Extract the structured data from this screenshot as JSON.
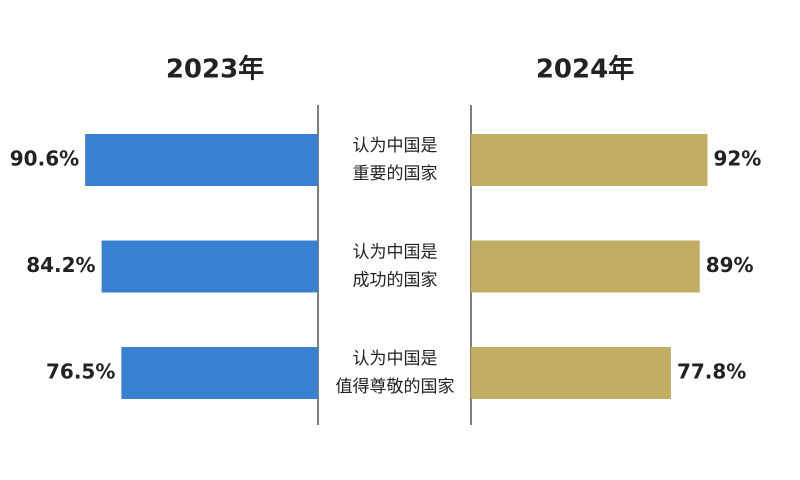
{
  "chart_data": {
    "type": "butterfly",
    "categories": [
      "认为中国是\n重要的国家",
      "认为中国是\n成功的国家",
      "认为中国是\n值得尊敬的国家"
    ],
    "series": [
      {
        "name": "2023年",
        "color": "#3a80d2",
        "values": [
          90.6,
          84.2,
          76.5
        ],
        "value_labels": [
          "90.6%",
          "84.2%",
          "76.5%"
        ]
      },
      {
        "name": "2024年",
        "color": "#c1ae62",
        "values": [
          92,
          89,
          77.8
        ],
        "value_labels": [
          "92%",
          "89%",
          "77.8%"
        ]
      }
    ]
  }
}
